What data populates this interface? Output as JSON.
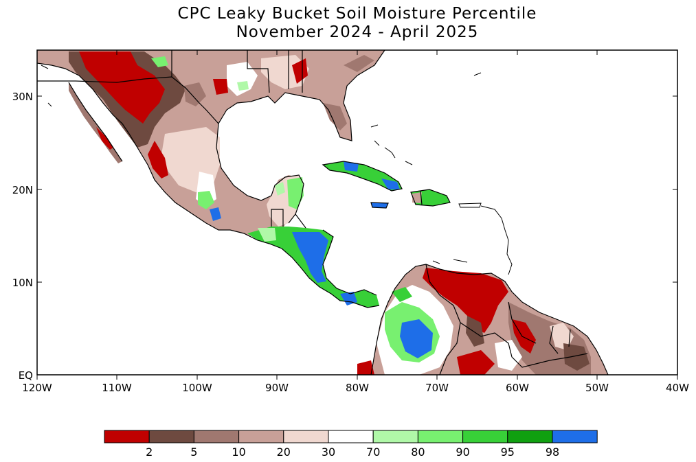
{
  "title": {
    "line1": "CPC Leaky Bucket Soil Moisture Percentile",
    "line2": "November 2024 - April 2025"
  },
  "axes": {
    "x_ticks": [
      "120W",
      "110W",
      "100W",
      "90W",
      "80W",
      "70W",
      "60W",
      "50W",
      "40W"
    ],
    "y_ticks": [
      "30N",
      "20N",
      "10N",
      "EQ"
    ]
  },
  "colorbar": {
    "colors": [
      "#c00000",
      "#6e4a40",
      "#a07870",
      "#c8a098",
      "#f0d8d0",
      "#ffffff",
      "#b0f8a8",
      "#78f070",
      "#38d038",
      "#10a010",
      "#1e6ee8"
    ],
    "labels": [
      "2",
      "5",
      "10",
      "20",
      "30",
      "70",
      "80",
      "90",
      "95",
      "98"
    ]
  },
  "map_colors": {
    "dry_extreme": "#c00000",
    "dry_very": "#6e4a40",
    "dry_mod": "#a07870",
    "dry_light": "#c8a098",
    "dry_slight": "#f0d8d0",
    "wet_light": "#b0f8a8",
    "wet_mod": "#78f070",
    "wet_very": "#38d038",
    "wet_high": "#10a010",
    "wet_extreme": "#1e6ee8"
  }
}
